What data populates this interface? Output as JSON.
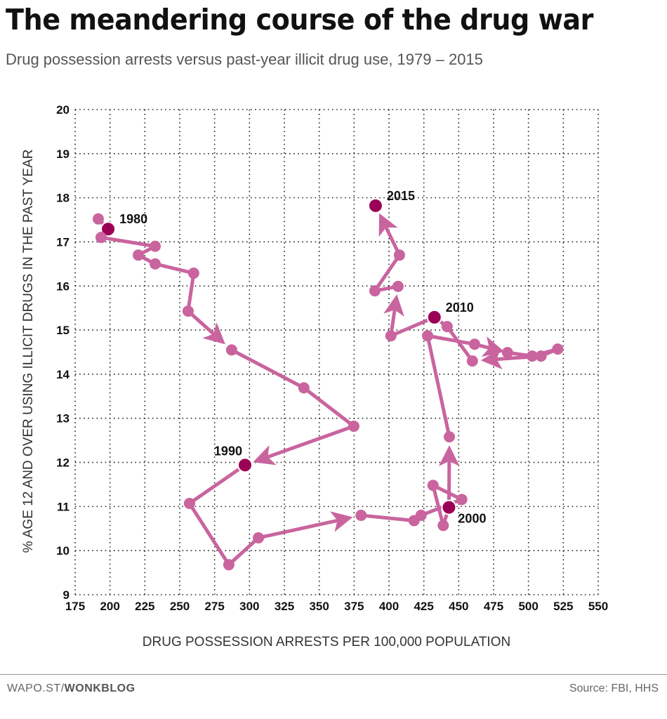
{
  "header": {
    "title": "The meandering course of the drug war",
    "subtitle": "Drug possession arrests versus past-year illicit drug use, 1979 – 2015"
  },
  "footer": {
    "credit_prefix": "WAPO.ST/",
    "credit_brand": "WONKBLOG",
    "source": "Source: FBI, HHS"
  },
  "chart_data": {
    "type": "line",
    "subtype": "connected-scatter",
    "xlabel": "DRUG POSSESSION ARRESTS PER 100,000 POPULATION",
    "ylabel": "% AGE 12 AND OVER USING ILLICIT DRUGS IN THE PAST YEAR",
    "xlim": [
      175,
      550
    ],
    "ylim": [
      9,
      20
    ],
    "xticks": [
      175,
      200,
      225,
      250,
      275,
      300,
      325,
      350,
      375,
      400,
      425,
      450,
      475,
      500,
      525,
      550
    ],
    "yticks": [
      9,
      10,
      11,
      12,
      13,
      14,
      15,
      16,
      17,
      18,
      19,
      20
    ],
    "grid": true,
    "colors": {
      "line": "#c9649e",
      "highlight": "#9b0057"
    },
    "highlight_years": [
      1980,
      1990,
      2000,
      2010,
      2015
    ],
    "arrow_into_years": [
      1987,
      1990,
      1994,
      2001,
      2004,
      2008,
      2012,
      2015
    ],
    "points": [
      {
        "year": 1979,
        "x": 191.6,
        "y": 17.52
      },
      {
        "year": 1980,
        "x": 198.7,
        "y": 17.29
      },
      {
        "year": 1981,
        "x": 193.6,
        "y": 17.1
      },
      {
        "year": 1982,
        "x": 232.4,
        "y": 16.9
      },
      {
        "year": 1983,
        "x": 220.3,
        "y": 16.7
      },
      {
        "year": 1984,
        "x": 232.4,
        "y": 16.5
      },
      {
        "year": 1985,
        "x": 260.0,
        "y": 16.29
      },
      {
        "year": 1986,
        "x": 256.0,
        "y": 15.43
      },
      {
        "year": 1987,
        "x": 287.2,
        "y": 14.55
      },
      {
        "year": 1988,
        "x": 339.0,
        "y": 13.69
      },
      {
        "year": 1989,
        "x": 374.8,
        "y": 12.82
      },
      {
        "year": 1990,
        "x": 296.8,
        "y": 11.94
      },
      {
        "year": 1991,
        "x": 257.0,
        "y": 11.07
      },
      {
        "year": 1992,
        "x": 285.2,
        "y": 9.68
      },
      {
        "year": 1993,
        "x": 306.4,
        "y": 10.29
      },
      {
        "year": 1994,
        "x": 380.0,
        "y": 10.8
      },
      {
        "year": 1995,
        "x": 418.0,
        "y": 10.68
      },
      {
        "year": 1996,
        "x": 423.0,
        "y": 10.8
      },
      {
        "year": 1997,
        "x": 452.2,
        "y": 11.16
      },
      {
        "year": 1998,
        "x": 431.6,
        "y": 11.48
      },
      {
        "year": 1999,
        "x": 438.9,
        "y": 10.57
      },
      {
        "year": 2000,
        "x": 443.0,
        "y": 10.98
      },
      {
        "year": 2001,
        "x": 443.3,
        "y": 12.58
      },
      {
        "year": 2002,
        "x": 427.7,
        "y": 14.87
      },
      {
        "year": 2003,
        "x": 461.4,
        "y": 14.68
      },
      {
        "year": 2004,
        "x": 485.0,
        "y": 14.49
      },
      {
        "year": 2005,
        "x": 502.6,
        "y": 14.41
      },
      {
        "year": 2006,
        "x": 521.0,
        "y": 14.57
      },
      {
        "year": 2007,
        "x": 509.0,
        "y": 14.41
      },
      {
        "year": 2008,
        "x": 459.8,
        "y": 14.3
      },
      {
        "year": 2009,
        "x": 441.7,
        "y": 15.08
      },
      {
        "year": 2010,
        "x": 432.6,
        "y": 15.29
      },
      {
        "year": 2011,
        "x": 401.4,
        "y": 14.87
      },
      {
        "year": 2012,
        "x": 406.5,
        "y": 15.99
      },
      {
        "year": 2013,
        "x": 389.9,
        "y": 15.89
      },
      {
        "year": 2014,
        "x": 407.5,
        "y": 16.7
      },
      {
        "year": 2015,
        "x": 390.4,
        "y": 17.82
      }
    ],
    "year_labels": [
      {
        "year": 1980,
        "text": "1980",
        "side": "right-up"
      },
      {
        "year": 1990,
        "text": "1990",
        "side": "left-up"
      },
      {
        "year": 2000,
        "text": "2000",
        "side": "right-down"
      },
      {
        "year": 2010,
        "text": "2010",
        "side": "right-up"
      },
      {
        "year": 2015,
        "text": "2015",
        "side": "right-up"
      }
    ]
  }
}
